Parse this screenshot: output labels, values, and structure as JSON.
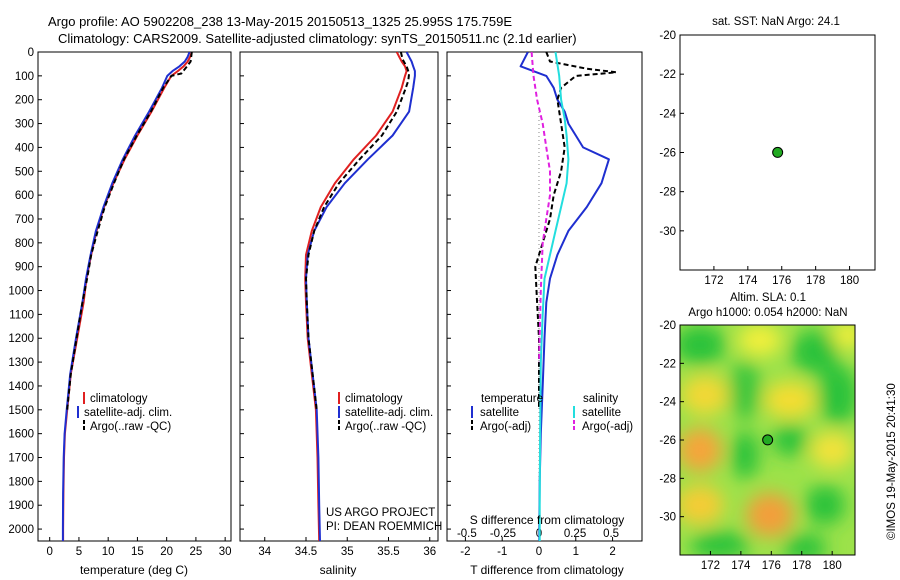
{
  "header": {
    "title_line1": "Argo profile: AO 5902208_238 13-May-2015 20150513_1325 25.995S 175.759E",
    "title_line2": "Climatology: CARS2009. Satellite-adjusted climatology: synTS_20150511.nc (2.1d earlier)"
  },
  "side_stamp": "©IMOS 19-May-2015 20:41:30",
  "colors": {
    "climatology": "#e02020",
    "satellite": "#1f2fd0",
    "argo": "#000000",
    "salinity_satellite": "#22dede",
    "salinity_argo": "#e020e0",
    "point": "#22aa22"
  },
  "chart_data": [
    {
      "type": "line",
      "panel": "temperature",
      "xlabel": "temperature (deg C)",
      "ylabel": "",
      "xlim": [
        -2,
        31
      ],
      "ylim": [
        2050,
        0
      ],
      "xticks": [
        0,
        5,
        10,
        15,
        20,
        25,
        30
      ],
      "yticks": [
        0,
        100,
        200,
        300,
        400,
        500,
        600,
        700,
        800,
        900,
        1000,
        1100,
        1200,
        1300,
        1400,
        1500,
        1600,
        1700,
        1800,
        1900,
        2000
      ],
      "legend": [
        "climatology",
        "satellite-adj. clim.",
        "Argo(..raw -QC)"
      ],
      "series": [
        {
          "name": "climatology",
          "x": [
            24.3,
            24.0,
            23.6,
            22.9,
            21.9,
            20.8,
            19.6,
            17.4,
            15.0,
            12.8,
            10.9,
            9.3,
            8.0,
            7.1,
            6.3,
            5.8,
            4.7,
            3.6,
            3.0,
            2.6,
            2.45,
            2.35,
            2.3,
            2.3
          ],
          "y": [
            0,
            20,
            40,
            60,
            80,
            100,
            150,
            250,
            350,
            450,
            550,
            650,
            750,
            850,
            950,
            1050,
            1200,
            1350,
            1500,
            1600,
            1700,
            1850,
            2000,
            2050
          ]
        },
        {
          "name": "satellite-adj. clim.",
          "x": [
            23.9,
            23.6,
            23.1,
            22.2,
            21.0,
            20.1,
            19.2,
            17.0,
            14.6,
            12.5,
            10.7,
            9.2,
            7.9,
            7.0,
            6.2,
            5.6,
            4.5,
            3.5,
            2.9,
            2.55,
            2.4,
            2.3,
            2.25,
            2.25
          ],
          "y": [
            0,
            20,
            40,
            60,
            80,
            100,
            150,
            250,
            350,
            450,
            550,
            650,
            750,
            850,
            950,
            1050,
            1200,
            1350,
            1500,
            1600,
            1700,
            1850,
            2000,
            2050
          ]
        },
        {
          "name": "Argo(..raw -QC)",
          "x": [
            24.3,
            24.2,
            24.1,
            23.5,
            23.0,
            22.7,
            22.5,
            20.8,
            19.4,
            17.3,
            14.9,
            12.7,
            11.0,
            9.4,
            8.2,
            7.1,
            6.4,
            5.6,
            4.6,
            3.6,
            3.0
          ],
          "y": [
            0,
            20,
            40,
            60,
            75,
            80,
            90,
            100,
            150,
            250,
            350,
            450,
            550,
            650,
            750,
            850,
            950,
            1050,
            1200,
            1350,
            1500
          ]
        }
      ]
    },
    {
      "type": "line",
      "panel": "salinity",
      "xlabel": "salinity",
      "ylabel": "",
      "xlim": [
        33.7,
        36.1
      ],
      "ylim": [
        2050,
        0
      ],
      "xticks": [
        34,
        34.5,
        35,
        35.5,
        36
      ],
      "legend": [
        "climatology",
        "satellite-adj. clim.",
        "Argo(..raw -QC)"
      ],
      "annotation": [
        "US ARGO PROJECT",
        "PI: DEAN ROEMMICH"
      ],
      "series": [
        {
          "name": "climatology",
          "x": [
            35.6,
            35.63,
            35.66,
            35.7,
            35.72,
            35.7,
            35.66,
            35.55,
            35.35,
            35.08,
            34.85,
            34.68,
            34.57,
            34.5,
            34.49,
            34.5,
            34.52,
            34.57,
            34.62,
            34.64,
            34.65,
            34.66
          ],
          "y": [
            0,
            20,
            40,
            60,
            80,
            100,
            150,
            250,
            350,
            450,
            550,
            650,
            750,
            850,
            950,
            1050,
            1200,
            1350,
            1500,
            1700,
            1900,
            2050
          ]
        },
        {
          "name": "satellite-adj. clim.",
          "x": [
            35.72,
            35.75,
            35.78,
            35.8,
            35.82,
            35.82,
            35.8,
            35.75,
            35.55,
            35.25,
            34.97,
            34.75,
            34.6,
            34.52,
            34.5,
            34.51,
            34.53,
            34.58,
            34.63,
            34.65,
            34.66,
            34.67
          ],
          "y": [
            0,
            20,
            40,
            60,
            80,
            100,
            150,
            250,
            350,
            450,
            550,
            650,
            750,
            850,
            950,
            1050,
            1200,
            1350,
            1500,
            1700,
            1900,
            2050
          ]
        },
        {
          "name": "Argo(..raw -QC)",
          "x": [
            35.65,
            35.67,
            35.72,
            35.75,
            35.74,
            35.7,
            35.6,
            35.42,
            35.15,
            34.9,
            34.72,
            34.6,
            34.53,
            34.5,
            34.51,
            34.53,
            34.58,
            34.63
          ],
          "y": [
            0,
            30,
            60,
            90,
            120,
            160,
            250,
            350,
            450,
            550,
            650,
            750,
            850,
            950,
            1050,
            1200,
            1350,
            1500
          ]
        }
      ]
    },
    {
      "type": "line",
      "panel": "difference",
      "xlabel": "T difference from climatology",
      "xlabel_top": "S difference from climatology",
      "xlim": [
        -2.5,
        2.8
      ],
      "ylim": [
        2050,
        0
      ],
      "xticks": [
        -2,
        -1,
        0,
        1,
        2
      ],
      "xticks_s": [
        -0.5,
        -0.25,
        0,
        0.25,
        0.5
      ],
      "legend_headers": [
        "temperature",
        "salinity"
      ],
      "legend": [
        "satellite",
        "Argo(-adj)",
        "satellite",
        "Argo(-adj)"
      ],
      "series": [
        {
          "name": "temperature satellite",
          "x": [
            -0.3,
            -0.5,
            0.2,
            0.4,
            0.5,
            0.7,
            0.8,
            1.0,
            1.2,
            1.9,
            1.7,
            1.3,
            0.8,
            0.5,
            0.3,
            0.2,
            0.15,
            0.1,
            0.05,
            0.02,
            0.01,
            0.01
          ],
          "y": [
            0,
            60,
            100,
            150,
            200,
            250,
            300,
            350,
            400,
            450,
            550,
            650,
            750,
            850,
            950,
            1050,
            1200,
            1400,
            1600,
            1800,
            2000,
            2050
          ]
        },
        {
          "name": "temperature Argo(-adj)",
          "x": [
            0.2,
            0.3,
            1.3,
            2.1,
            1.0,
            0.6,
            0.5,
            0.6,
            0.7,
            0.6,
            0.4,
            0.3,
            0.1,
            -0.1,
            -0.05,
            0.0,
            0.0
          ],
          "y": [
            0,
            40,
            70,
            85,
            100,
            150,
            200,
            300,
            400,
            500,
            600,
            700,
            800,
            900,
            1050,
            1200,
            1500
          ]
        },
        {
          "name": "salinity satellite",
          "x": [
            0.45,
            0.55,
            0.6,
            0.7,
            0.75,
            0.8,
            0.75,
            0.6,
            0.45,
            0.3,
            0.15,
            0.1,
            0.05,
            0.03,
            0.02,
            0.02
          ],
          "y": [
            0,
            100,
            200,
            280,
            350,
            450,
            550,
            650,
            750,
            850,
            950,
            1100,
            1300,
            1600,
            1900,
            2050
          ]
        },
        {
          "name": "salinity Argo(-adj)",
          "x": [
            -0.2,
            -0.15,
            -0.05,
            0.1,
            0.2,
            0.3,
            0.3,
            0.2,
            0.1,
            0.05,
            0.0
          ],
          "y": [
            0,
            100,
            200,
            300,
            400,
            500,
            600,
            700,
            800,
            1000,
            1300
          ]
        }
      ]
    },
    {
      "type": "scatter",
      "panel": "sst_map",
      "title": "sat. SST: NaN Argo: 24.1",
      "xlim": [
        170,
        181.5
      ],
      "ylim": [
        -32,
        -20
      ],
      "xticks": [
        172,
        174,
        176,
        178,
        180
      ],
      "yticks": [
        -20,
        -22,
        -24,
        -26,
        -28,
        -30
      ],
      "points": [
        {
          "x": 175.759,
          "y": -25.995
        }
      ]
    },
    {
      "type": "heatmap",
      "panel": "sla_map",
      "title": "Altim. SLA: 0.1",
      "subtitle": "Argo h1000: 0.054 h2000: NaN",
      "xlim": [
        170,
        181.5
      ],
      "ylim": [
        -32,
        -20
      ],
      "xticks": [
        172,
        174,
        176,
        178,
        180
      ],
      "yticks": [
        -20,
        -22,
        -24,
        -26,
        -28,
        -30
      ],
      "points": [
        {
          "x": 175.759,
          "y": -25.995
        }
      ]
    }
  ]
}
